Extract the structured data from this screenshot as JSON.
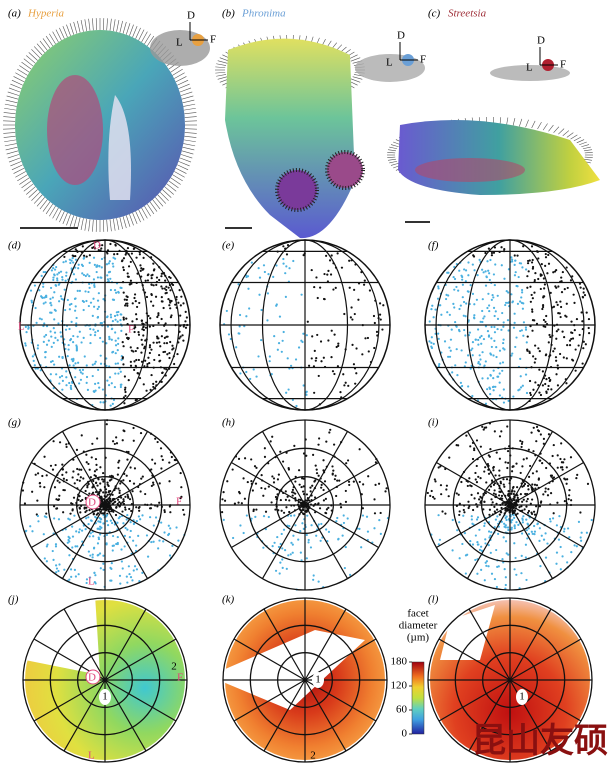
{
  "panels": [
    {
      "label": "(a)",
      "species": "Hyperia"
    },
    {
      "label": "(b)",
      "species": "Phronima"
    },
    {
      "label": "(c)",
      "species": "Streetsia"
    },
    {
      "label": "(d)"
    },
    {
      "label": "(e)"
    },
    {
      "label": "(f)"
    },
    {
      "label": "(g)"
    },
    {
      "label": "(h)"
    },
    {
      "label": "(i)"
    },
    {
      "label": "(j)",
      "marks": [
        "1",
        "2"
      ]
    },
    {
      "label": "(k)",
      "marks": [
        "1",
        "2"
      ]
    },
    {
      "label": "(l)",
      "marks": [
        "1"
      ]
    }
  ],
  "directions": {
    "dorsal": "D",
    "lateral": "L",
    "frontal": "F"
  },
  "colorbar": {
    "title": [
      "facet",
      "diameter",
      "(µm)"
    ],
    "ticks": [
      0,
      60,
      120,
      180
    ],
    "lim": [
      0,
      180
    ]
  },
  "watermark": "昆山友硕"
}
